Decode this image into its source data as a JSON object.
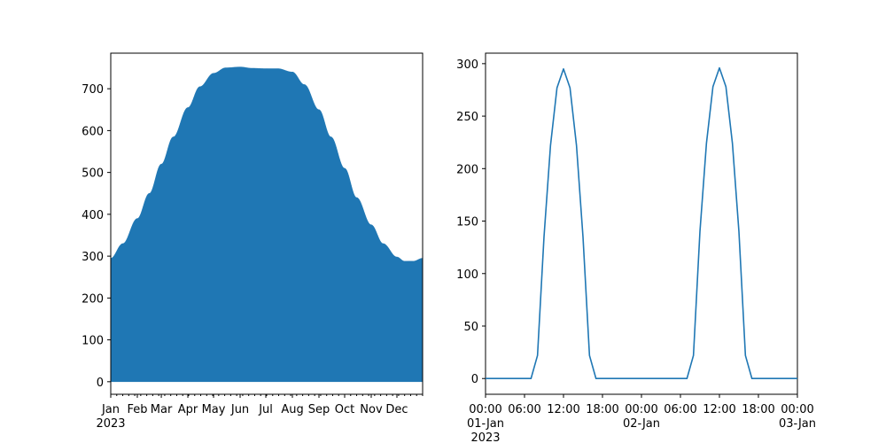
{
  "chart_data": [
    {
      "type": "area",
      "title": "",
      "xlabel": "",
      "ylabel": "",
      "color": "#1f77b4",
      "xlim": [
        "2023-01-01",
        "2023-12-31"
      ],
      "ylim": [
        -30,
        785
      ],
      "yticks": [
        0,
        100,
        200,
        300,
        400,
        500,
        600,
        700
      ],
      "ytick_labels": [
        "0",
        "100",
        "200",
        "300",
        "400",
        "500",
        "600",
        "700"
      ],
      "xtick_labels": [
        "Jan",
        "Feb",
        "Mar",
        "Apr",
        "May",
        "Jun",
        "Jul",
        "Aug",
        "Sep",
        "Oct",
        "Nov",
        "Dec"
      ],
      "xtick_dates": [
        "2023-01-01",
        "2023-02-01",
        "2023-03-01",
        "2023-04-01",
        "2023-05-01",
        "2023-06-01",
        "2023-07-01",
        "2023-08-01",
        "2023-09-01",
        "2023-10-01",
        "2023-11-01",
        "2023-12-01"
      ],
      "year_label": "2023",
      "minor_ticks": "weekly",
      "fill_min": 0,
      "envelope": [
        {
          "x": "2023-01-01",
          "y": 295
        },
        {
          "x": "2023-01-15",
          "y": 330
        },
        {
          "x": "2023-02-01",
          "y": 390
        },
        {
          "x": "2023-02-15",
          "y": 450
        },
        {
          "x": "2023-03-01",
          "y": 520
        },
        {
          "x": "2023-03-15",
          "y": 585
        },
        {
          "x": "2023-04-01",
          "y": 655
        },
        {
          "x": "2023-04-15",
          "y": 705
        },
        {
          "x": "2023-05-01",
          "y": 737
        },
        {
          "x": "2023-05-15",
          "y": 750
        },
        {
          "x": "2023-06-01",
          "y": 752
        },
        {
          "x": "2023-06-15",
          "y": 749
        },
        {
          "x": "2023-07-01",
          "y": 748
        },
        {
          "x": "2023-07-15",
          "y": 748
        },
        {
          "x": "2023-08-01",
          "y": 740
        },
        {
          "x": "2023-08-15",
          "y": 710
        },
        {
          "x": "2023-09-01",
          "y": 650
        },
        {
          "x": "2023-09-15",
          "y": 585
        },
        {
          "x": "2023-10-01",
          "y": 510
        },
        {
          "x": "2023-10-15",
          "y": 440
        },
        {
          "x": "2023-11-01",
          "y": 375
        },
        {
          "x": "2023-11-15",
          "y": 330
        },
        {
          "x": "2023-12-01",
          "y": 298
        },
        {
          "x": "2023-12-10",
          "y": 288
        },
        {
          "x": "2023-12-20",
          "y": 288
        },
        {
          "x": "2023-12-31",
          "y": 295
        }
      ]
    },
    {
      "type": "line",
      "title": "",
      "xlabel": "",
      "ylabel": "",
      "color": "#1f77b4",
      "xlim": [
        "2023-01-01 00:00",
        "2023-01-03 00:00"
      ],
      "ylim": [
        -15,
        310
      ],
      "yticks": [
        0,
        50,
        100,
        150,
        200,
        250,
        300
      ],
      "ytick_labels": [
        "0",
        "50",
        "100",
        "150",
        "200",
        "250",
        "300"
      ],
      "xticks_hours": [
        0,
        6,
        12,
        18,
        24,
        30,
        36,
        42,
        48
      ],
      "xtick_labels": [
        "00:00\n01-Jan\n2023",
        "06:00",
        "12:00",
        "18:00",
        "00:00\n02-Jan",
        "06:00",
        "12:00",
        "18:00",
        "00:00\n03-Jan"
      ],
      "x_hours": [
        0,
        1,
        2,
        3,
        4,
        5,
        6,
        7,
        8,
        9,
        10,
        11,
        12,
        13,
        14,
        15,
        16,
        17,
        18,
        19,
        20,
        21,
        22,
        23,
        24,
        25,
        26,
        27,
        28,
        29,
        30,
        31,
        32,
        33,
        34,
        35,
        36,
        37,
        38,
        39,
        40,
        41,
        42,
        43,
        44,
        45,
        46,
        47,
        48
      ],
      "values": [
        0,
        0,
        0,
        0,
        0,
        0,
        0,
        0,
        22,
        135,
        222,
        277,
        295,
        277,
        222,
        135,
        22,
        0,
        0,
        0,
        0,
        0,
        0,
        0,
        0,
        0,
        0,
        0,
        0,
        0,
        0,
        0,
        22,
        140,
        224,
        278,
        296,
        278,
        224,
        140,
        22,
        0,
        0,
        0,
        0,
        0,
        0,
        0,
        0
      ]
    }
  ]
}
